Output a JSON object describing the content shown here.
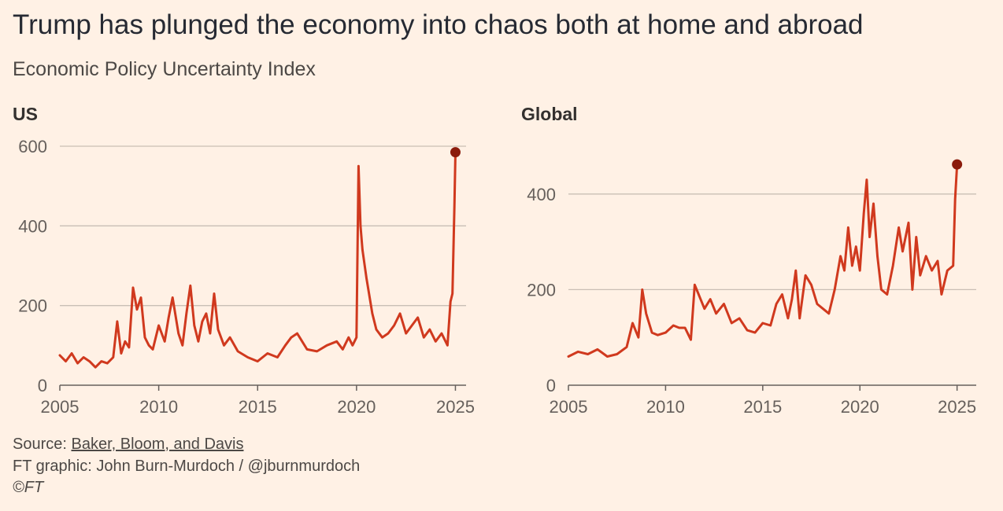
{
  "title": "Trump has plunged the economy into chaos both at home and abroad",
  "subtitle": "Economic Policy Uncertainty Index",
  "colors": {
    "line": "#D0391E",
    "endpoint": "#8B1B0C",
    "grid": "#C9BFB5",
    "axis": "#66605C",
    "background": "#FFF1E5"
  },
  "chart_data": [
    {
      "type": "line",
      "panel_label": "US",
      "xlim": [
        2005,
        2025.3
      ],
      "ylim": [
        0,
        600
      ],
      "xticks": [
        2005,
        2010,
        2015,
        2020,
        2025
      ],
      "yticks": [
        0,
        200,
        400,
        600
      ],
      "grid": true,
      "endpoint_marker": [
        2025.0,
        585
      ],
      "series": [
        {
          "x": [
            2005.0,
            2005.3,
            2005.6,
            2005.9,
            2006.2,
            2006.5,
            2006.8,
            2007.1,
            2007.4,
            2007.7,
            2007.9,
            2008.1,
            2008.3,
            2008.5,
            2008.7,
            2008.9,
            2009.1,
            2009.3,
            2009.5,
            2009.7,
            2010.0,
            2010.3,
            2010.5,
            2010.7,
            2011.0,
            2011.2,
            2011.4,
            2011.6,
            2011.8,
            2012.0,
            2012.2,
            2012.4,
            2012.6,
            2012.8,
            2013.0,
            2013.3,
            2013.6,
            2014.0,
            2014.5,
            2015.0,
            2015.5,
            2016.0,
            2016.4,
            2016.7,
            2017.0,
            2017.5,
            2018.0,
            2018.5,
            2019.0,
            2019.3,
            2019.6,
            2019.8,
            2020.0,
            2020.1,
            2020.2,
            2020.3,
            2020.5,
            2020.8,
            2021.0,
            2021.3,
            2021.6,
            2021.9,
            2022.2,
            2022.5,
            2022.8,
            2023.1,
            2023.4,
            2023.7,
            2024.0,
            2024.3,
            2024.6,
            2024.75,
            2024.85,
            2024.95,
            2025.0
          ],
          "y": [
            75,
            60,
            80,
            55,
            70,
            60,
            45,
            60,
            55,
            70,
            160,
            80,
            110,
            95,
            245,
            190,
            220,
            120,
            100,
            90,
            150,
            110,
            170,
            220,
            130,
            100,
            180,
            250,
            150,
            110,
            160,
            180,
            130,
            230,
            140,
            100,
            120,
            85,
            70,
            60,
            80,
            70,
            100,
            120,
            130,
            90,
            85,
            100,
            110,
            90,
            120,
            100,
            120,
            550,
            400,
            340,
            270,
            180,
            140,
            120,
            130,
            150,
            180,
            130,
            150,
            170,
            120,
            140,
            110,
            130,
            100,
            210,
            230,
            450,
            585
          ]
        }
      ]
    },
    {
      "type": "line",
      "panel_label": "Global",
      "xlim": [
        2005,
        2025.5
      ],
      "ylim": [
        0,
        450
      ],
      "xticks": [
        2005,
        2010,
        2015,
        2020,
        2025
      ],
      "yticks": [
        0,
        200,
        400
      ],
      "grid": true,
      "endpoint_marker": [
        2025.0,
        462
      ],
      "series": [
        {
          "x": [
            2005.0,
            2005.5,
            2006.0,
            2006.5,
            2007.0,
            2007.5,
            2008.0,
            2008.3,
            2008.6,
            2008.8,
            2009.0,
            2009.3,
            2009.6,
            2010.0,
            2010.4,
            2010.7,
            2011.0,
            2011.3,
            2011.5,
            2011.7,
            2012.0,
            2012.3,
            2012.6,
            2013.0,
            2013.4,
            2013.8,
            2014.2,
            2014.6,
            2015.0,
            2015.4,
            2015.7,
            2016.0,
            2016.3,
            2016.5,
            2016.7,
            2016.9,
            2017.2,
            2017.5,
            2017.8,
            2018.1,
            2018.4,
            2018.7,
            2019.0,
            2019.2,
            2019.4,
            2019.6,
            2019.8,
            2020.0,
            2020.2,
            2020.35,
            2020.5,
            2020.7,
            2020.9,
            2021.1,
            2021.4,
            2021.7,
            2022.0,
            2022.2,
            2022.5,
            2022.7,
            2022.9,
            2023.1,
            2023.4,
            2023.7,
            2024.0,
            2024.2,
            2024.5,
            2024.8,
            2024.9,
            2025.0
          ],
          "y": [
            60,
            70,
            65,
            75,
            60,
            65,
            80,
            130,
            100,
            200,
            150,
            110,
            105,
            110,
            125,
            120,
            120,
            95,
            210,
            190,
            160,
            180,
            150,
            170,
            130,
            140,
            115,
            110,
            130,
            125,
            170,
            190,
            140,
            180,
            240,
            140,
            230,
            210,
            170,
            160,
            150,
            200,
            270,
            240,
            330,
            250,
            290,
            240,
            360,
            430,
            310,
            380,
            270,
            200,
            190,
            250,
            330,
            280,
            340,
            200,
            310,
            230,
            270,
            240,
            260,
            190,
            240,
            250,
            390,
            462
          ]
        }
      ]
    }
  ],
  "footer": {
    "source_prefix": "Source: ",
    "source_link": "Baker, Bloom, and Davis",
    "credit": "FT graphic: John Burn-Murdoch / @jburnmurdoch",
    "copyright": "©FT"
  }
}
